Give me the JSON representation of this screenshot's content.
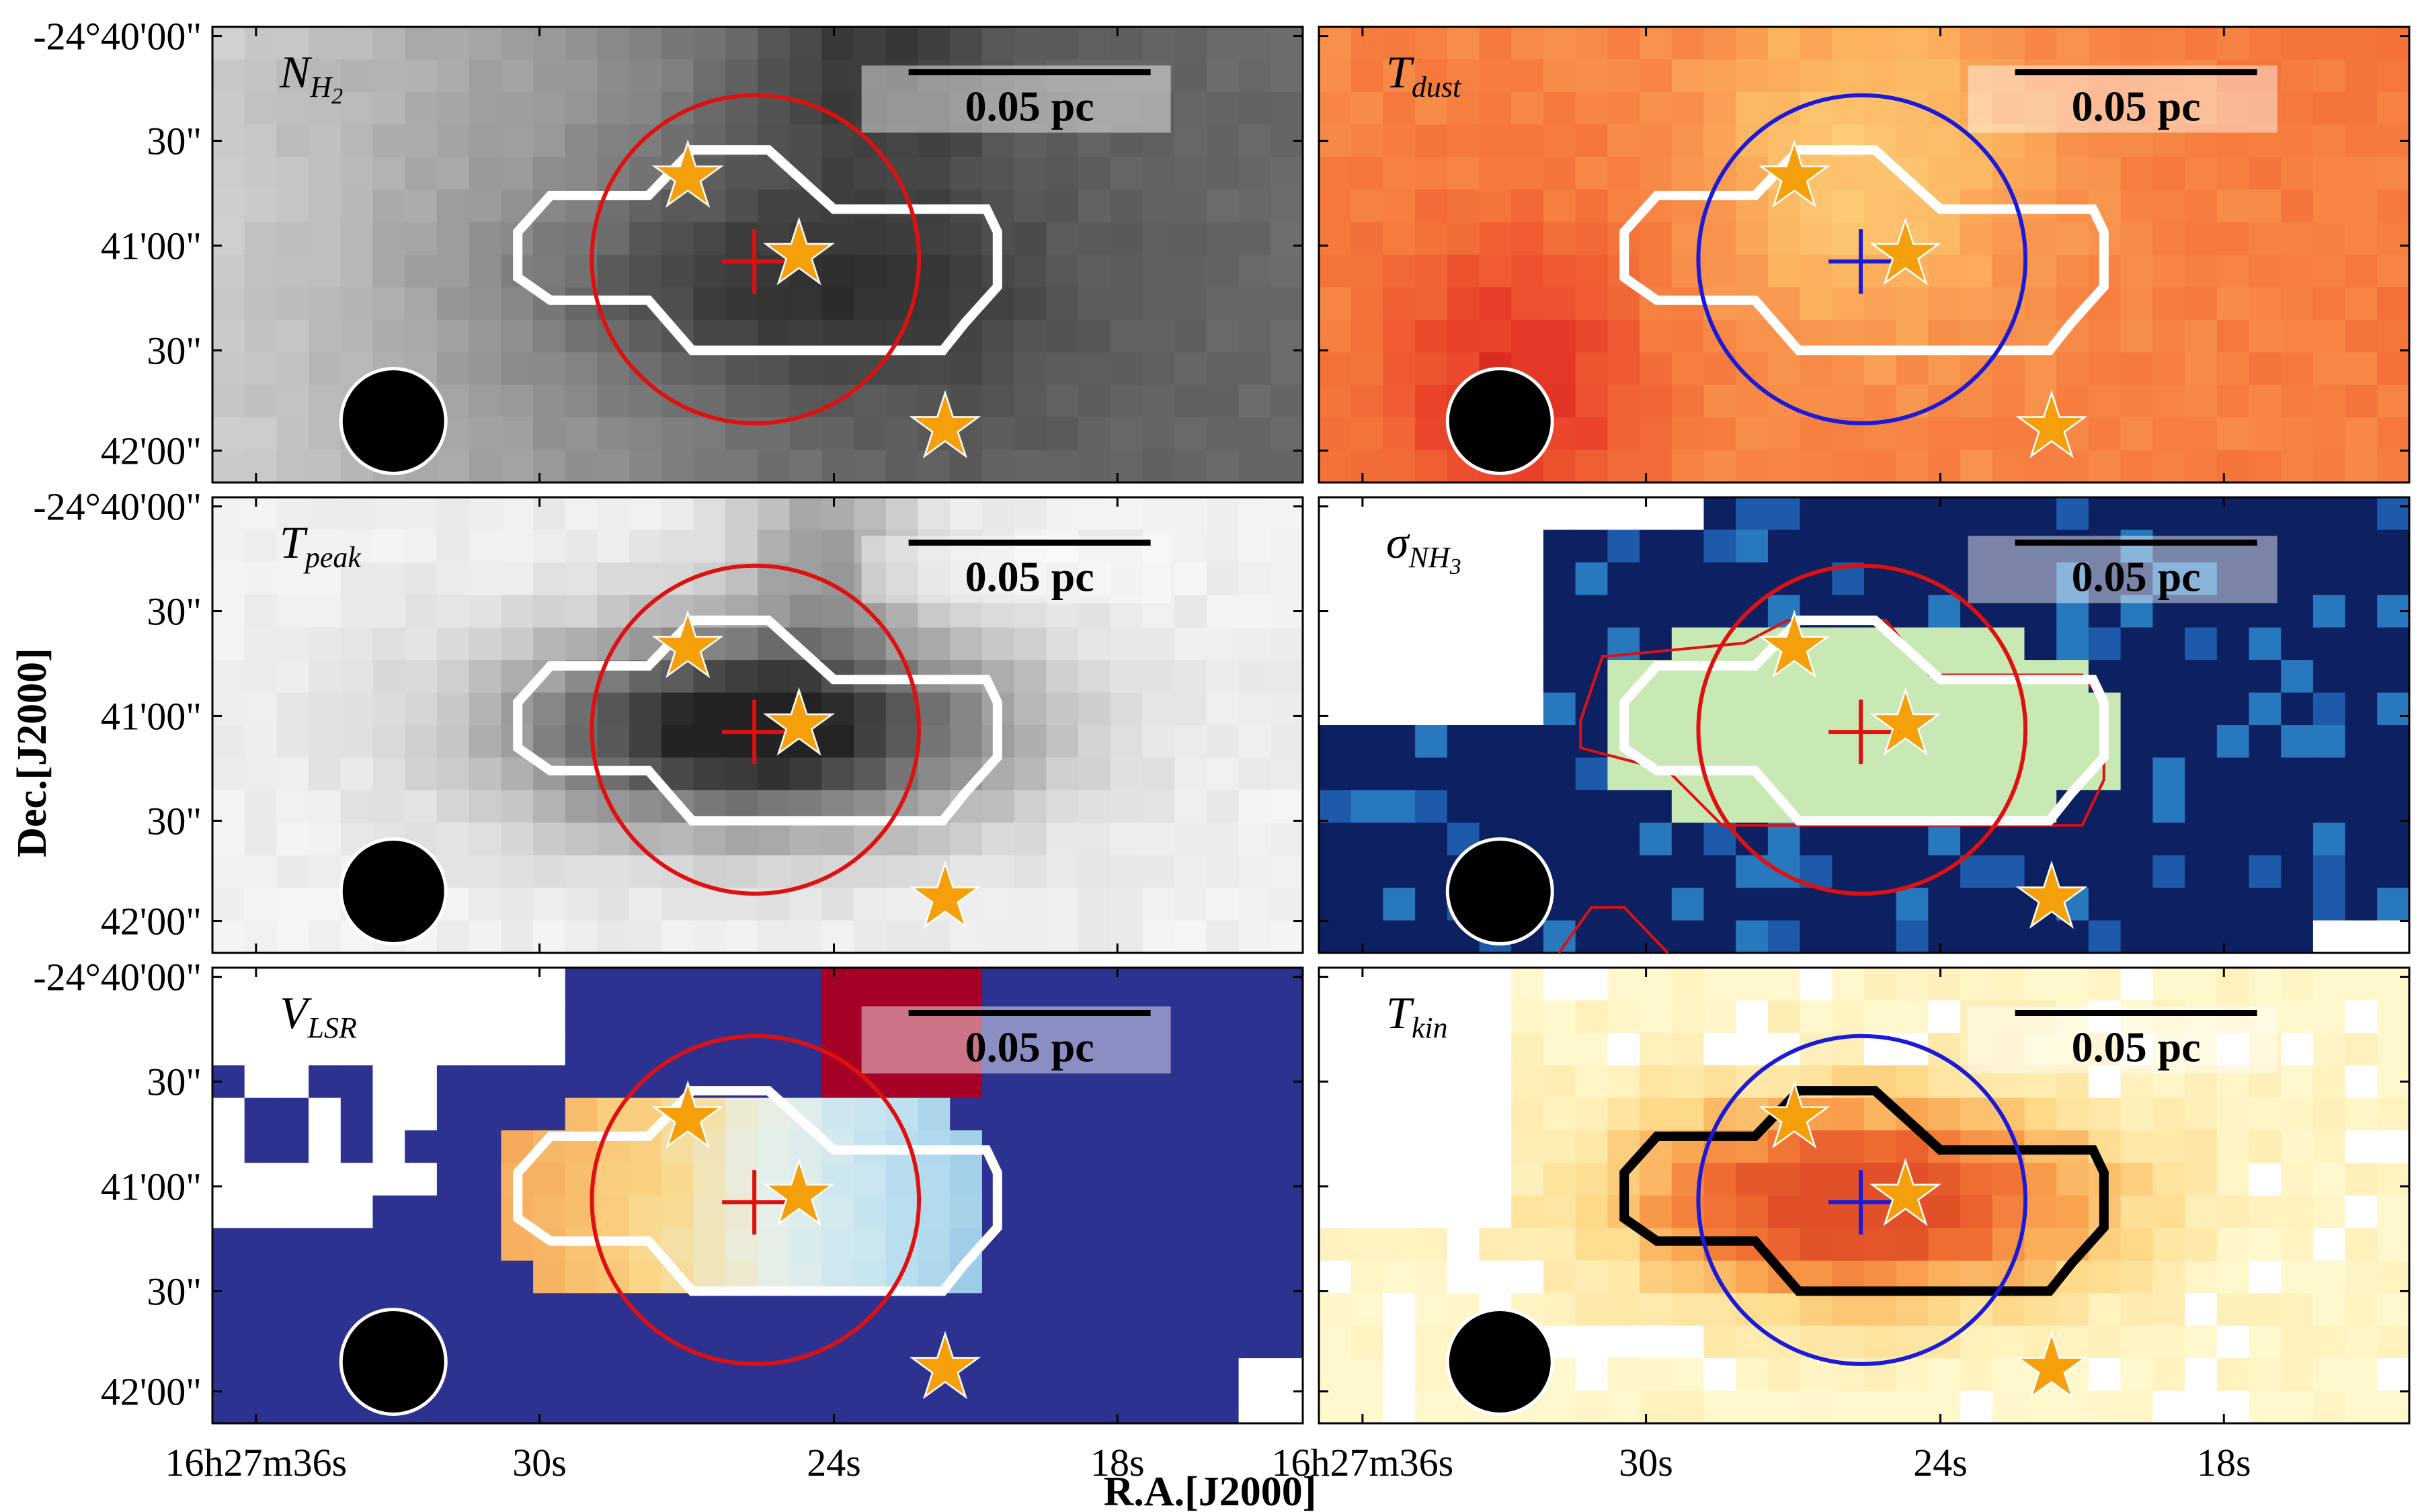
{
  "chart_data": {
    "type": "heatmap",
    "x_axis_title": "R.A.[J2000]",
    "y_axis_title": "Dec.[J2000]",
    "x_tick_labels": [
      "16h27m36s",
      "30s",
      "24s",
      "18s"
    ],
    "y_tick_labels": [
      "-24°40'00\"",
      "30\"",
      "41'00\"",
      "30\"",
      "42'00\""
    ],
    "scale_bar_label": "0.05 pc",
    "panels": [
      {
        "name": "N_H2",
        "label_main": "N",
        "label_sub": "H",
        "label_sub2": "2",
        "colormap": "gray_r",
        "circle_color": "#e01010",
        "cross_color": "#e01010",
        "contour_color": "#ffffff",
        "mask": false
      },
      {
        "name": "T_dust",
        "label_main": "T",
        "label_sub": "dust",
        "label_sub2": "",
        "colormap": "warm",
        "circle_color": "#1a1ad8",
        "cross_color": "#1a1ad8",
        "contour_color": "#ffffff",
        "mask": false
      },
      {
        "name": "T_peak",
        "label_main": "T",
        "label_sub": "peak",
        "label_sub2": "",
        "colormap": "gray_r",
        "circle_color": "#e01010",
        "cross_color": "#e01010",
        "contour_color": "#ffffff",
        "mask": false
      },
      {
        "name": "sigma_NH3",
        "label_main": "σ",
        "label_sub": "NH",
        "label_sub2": "3",
        "colormap": "navy",
        "circle_color": "#e01010",
        "cross_color": "#e01010",
        "contour_color": "#ffffff",
        "mask": true
      },
      {
        "name": "V_LSR",
        "label_main": "V",
        "label_sub": "LSR",
        "label_sub2": "",
        "colormap": "rdylbu",
        "circle_color": "#e01010",
        "cross_color": "#e01010",
        "contour_color": "#ffffff",
        "mask": true
      },
      {
        "name": "T_kin",
        "label_main": "T",
        "label_sub": "kin",
        "label_sub2": "",
        "colormap": "yelred",
        "circle_color": "#1a1ad8",
        "cross_color": "#1a1ad8",
        "contour_color": "#000000",
        "mask": true
      }
    ],
    "colors": {
      "star_fill": "#f5a00a",
      "beam": "#000000"
    }
  }
}
